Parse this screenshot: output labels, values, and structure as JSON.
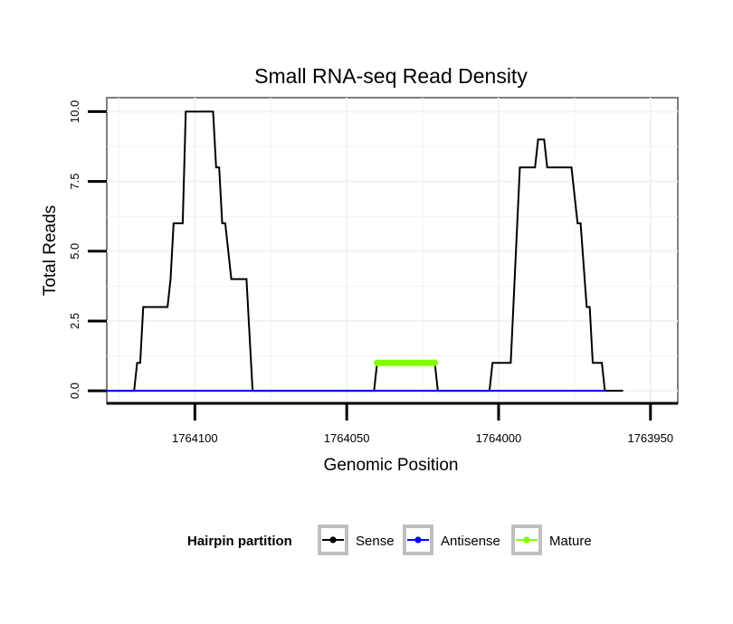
{
  "chart_data": {
    "type": "line",
    "title": "Small RNA-seq Read Density",
    "xlabel": "Genomic Position",
    "ylabel": "Total Reads",
    "x_reversed": true,
    "xlim": [
      1764129,
      1763941
    ],
    "ylim": [
      -0.45,
      10.5
    ],
    "x_ticks": [
      1764100,
      1764050,
      1764000,
      1763950
    ],
    "x_tick_labels": [
      "1764100",
      "1764050",
      "1764000",
      "1763950"
    ],
    "y_ticks": [
      0,
      2.5,
      5,
      7.5,
      10
    ],
    "y_tick_labels": [
      "0.0",
      "2.5",
      "5.0",
      "7.5",
      "10.0"
    ],
    "grid": true,
    "legend": {
      "title": "Hairpin partition",
      "position": "bottom",
      "entries": [
        "Sense",
        "Antisense",
        "Mature"
      ]
    },
    "series": [
      {
        "name": "Sense",
        "color": "#000000",
        "points": [
          [
            1764129,
            0
          ],
          [
            1764120,
            0
          ],
          [
            1764119,
            1
          ],
          [
            1764118,
            1
          ],
          [
            1764117,
            3
          ],
          [
            1764109,
            3
          ],
          [
            1764108,
            4
          ],
          [
            1764107,
            6
          ],
          [
            1764104,
            6
          ],
          [
            1764103,
            10
          ],
          [
            1764094,
            10
          ],
          [
            1764093,
            8
          ],
          [
            1764092,
            8
          ],
          [
            1764091,
            6
          ],
          [
            1764090,
            6
          ],
          [
            1764088,
            4
          ],
          [
            1764083,
            4
          ],
          [
            1764081,
            0
          ],
          [
            1764041,
            0
          ],
          [
            1764040,
            1
          ],
          [
            1764021,
            1
          ],
          [
            1764020,
            0
          ],
          [
            1764003,
            0
          ],
          [
            1764002,
            1
          ],
          [
            1763996,
            1
          ],
          [
            1763993,
            8
          ],
          [
            1763988,
            8
          ],
          [
            1763987,
            9
          ],
          [
            1763985,
            9
          ],
          [
            1763984,
            8
          ],
          [
            1763976,
            8
          ],
          [
            1763975,
            7
          ],
          [
            1763974,
            6
          ],
          [
            1763973,
            6
          ],
          [
            1763971,
            3
          ],
          [
            1763970,
            3
          ],
          [
            1763969,
            1
          ],
          [
            1763966,
            1
          ],
          [
            1763965,
            0
          ],
          [
            1763959,
            0
          ]
        ]
      },
      {
        "name": "Antisense",
        "color": "#0000ff",
        "points": [
          [
            1764129,
            0
          ],
          [
            1763965,
            0
          ]
        ]
      },
      {
        "name": "Mature",
        "color": "#80ff00",
        "points": [
          [
            1764040,
            1
          ],
          [
            1764039,
            1
          ],
          [
            1764038,
            1
          ],
          [
            1764037,
            1
          ],
          [
            1764036,
            1
          ],
          [
            1764035,
            1
          ],
          [
            1764034,
            1
          ],
          [
            1764033,
            1
          ],
          [
            1764032,
            1
          ],
          [
            1764031,
            1
          ],
          [
            1764030,
            1
          ],
          [
            1764029,
            1
          ],
          [
            1764028,
            1
          ],
          [
            1764027,
            1
          ],
          [
            1764026,
            1
          ],
          [
            1764025,
            1
          ],
          [
            1764024,
            1
          ],
          [
            1764023,
            1
          ],
          [
            1764022,
            1
          ],
          [
            1764021,
            1
          ]
        ]
      }
    ]
  }
}
